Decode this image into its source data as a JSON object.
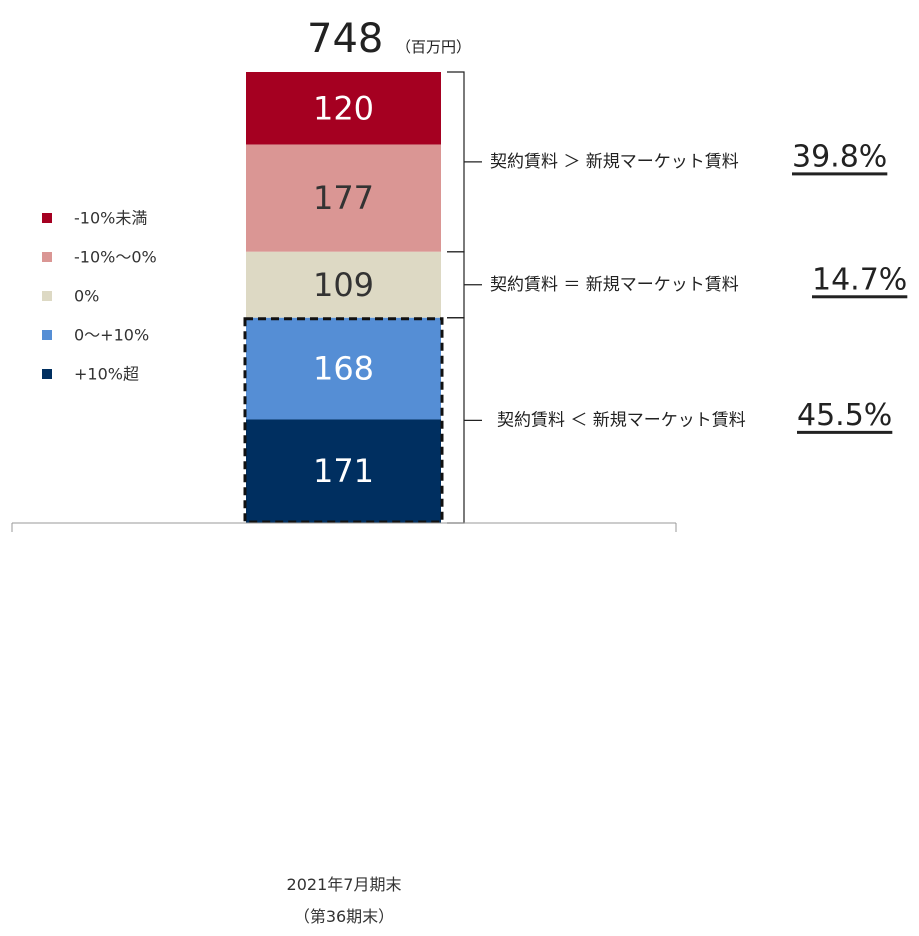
{
  "chart_data": {
    "type": "bar",
    "stacked": true,
    "total": "748",
    "unit": "（百万円）",
    "categories": [
      "2021年7月期末",
      "（第36期末）"
    ],
    "series": [
      {
        "name": "-10%未満",
        "value": 120,
        "color": "#a50021",
        "label_color": "#ffffff"
      },
      {
        "name": "-10%～0%",
        "value": 177,
        "color": "#da9694",
        "label_color": "#333333"
      },
      {
        "name": "0%",
        "value": 109,
        "color": "#ddd9c4",
        "label_color": "#333333"
      },
      {
        "name": "0～+10%",
        "value": 168,
        "color": "#558ed5",
        "label_color": "#ffffff"
      },
      {
        "name": "+10%超",
        "value": 171,
        "color": "#002f60",
        "label_color": "#ffffff"
      }
    ],
    "annotations": [
      {
        "text": "契約賃料 ＞ 新規マーケット賃料",
        "percent": "39.8%",
        "covers": [
          0,
          1
        ]
      },
      {
        "text": "契約賃料 ＝ 新規マーケット賃料",
        "percent": "14.7%",
        "covers": [
          2
        ]
      },
      {
        "text": "契約賃料 ＜ 新規マーケット賃料",
        "percent": "45.5%",
        "covers": [
          3,
          4
        ]
      }
    ],
    "highlight_dashed": [
      3,
      4
    ],
    "legend_position": "left"
  }
}
